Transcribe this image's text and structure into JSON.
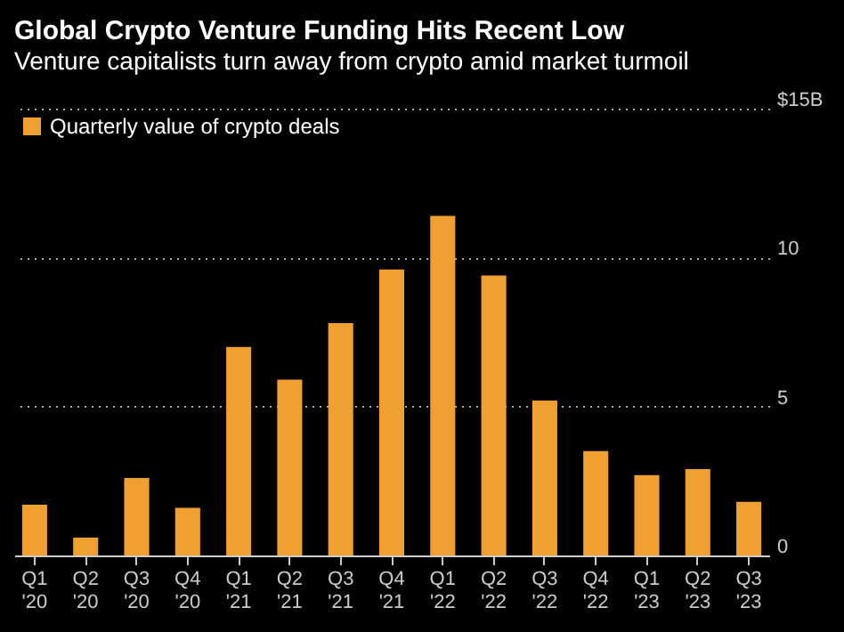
{
  "chart_data": {
    "type": "bar",
    "title": "Global Crypto Venture Funding Hits Recent Low",
    "subtitle": "Venture capitalists turn away from crypto amid market turmoil",
    "categories": [
      "Q1 '20",
      "Q2 '20",
      "Q3 '20",
      "Q4 '20",
      "Q1 '21",
      "Q2 '21",
      "Q3 '21",
      "Q4 '21",
      "Q1 '22",
      "Q2 '22",
      "Q3 '22",
      "Q4 '22",
      "Q1 '23",
      "Q2 '23",
      "Q3 '23"
    ],
    "series": [
      {
        "name": "Quarterly value of crypto deals",
        "color": "#f0a030",
        "values": [
          1.7,
          0.6,
          2.6,
          1.6,
          7.0,
          5.9,
          7.8,
          9.6,
          11.4,
          9.4,
          5.2,
          3.5,
          2.7,
          2.9,
          1.8
        ]
      }
    ],
    "ylim": [
      0,
      15
    ],
    "yticks": [
      0,
      5,
      10,
      {
        "value": 15,
        "label": "$15B"
      }
    ],
    "grid": "y",
    "legend": "top left"
  }
}
